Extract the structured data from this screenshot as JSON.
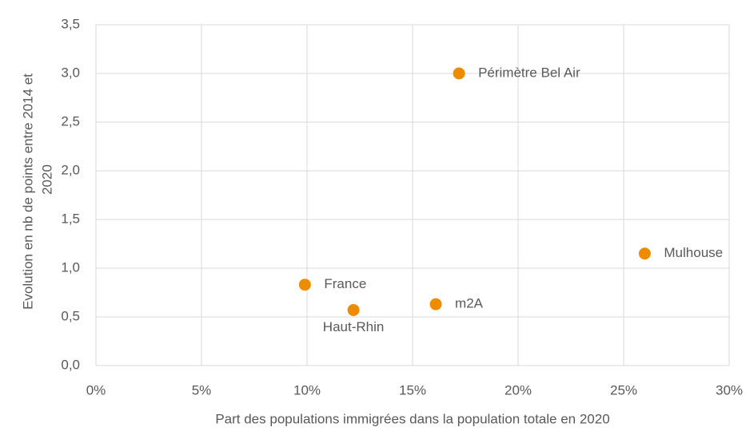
{
  "chart_data": {
    "type": "scatter",
    "x_label": "Part des populations immigrées dans la population totale en 2020",
    "y_label": [
      "Evolution en nb de points entre  2014 et",
      "2020"
    ],
    "series": [
      {
        "name": null,
        "color": "#ee8c00",
        "labels": [
          "France",
          "Haut-Rhin",
          "m2A",
          "Périmètre Bel Air",
          "Mulhouse"
        ],
        "x": [
          9.9,
          12.2,
          16.1,
          17.2,
          26.0
        ],
        "values": [
          0.83,
          0.57,
          0.63,
          3.0,
          1.15
        ]
      }
    ],
    "xlim": [
      0,
      30
    ],
    "xticks": [
      {
        "value": 0,
        "label": "0%"
      },
      {
        "value": 5,
        "label": "5%"
      },
      {
        "value": 10,
        "label": "10%"
      },
      {
        "value": 15,
        "label": "15%"
      },
      {
        "value": 20,
        "label": "20%"
      },
      {
        "value": 25,
        "label": "25%"
      },
      {
        "value": 30,
        "label": "30%"
      }
    ],
    "ylim": [
      0,
      3.5
    ],
    "yticks": [
      {
        "value": 0,
        "label": "0,0"
      },
      {
        "value": 0.5,
        "label": "0,5"
      },
      {
        "value": 1,
        "label": "1,0"
      },
      {
        "value": 1.5,
        "label": "1,5"
      },
      {
        "value": 2,
        "label": "2,0"
      },
      {
        "value": 2.5,
        "label": "2,5"
      },
      {
        "value": 3,
        "label": "3,0"
      },
      {
        "value": 3.5,
        "label": "3,5"
      }
    ],
    "grid": true
  }
}
